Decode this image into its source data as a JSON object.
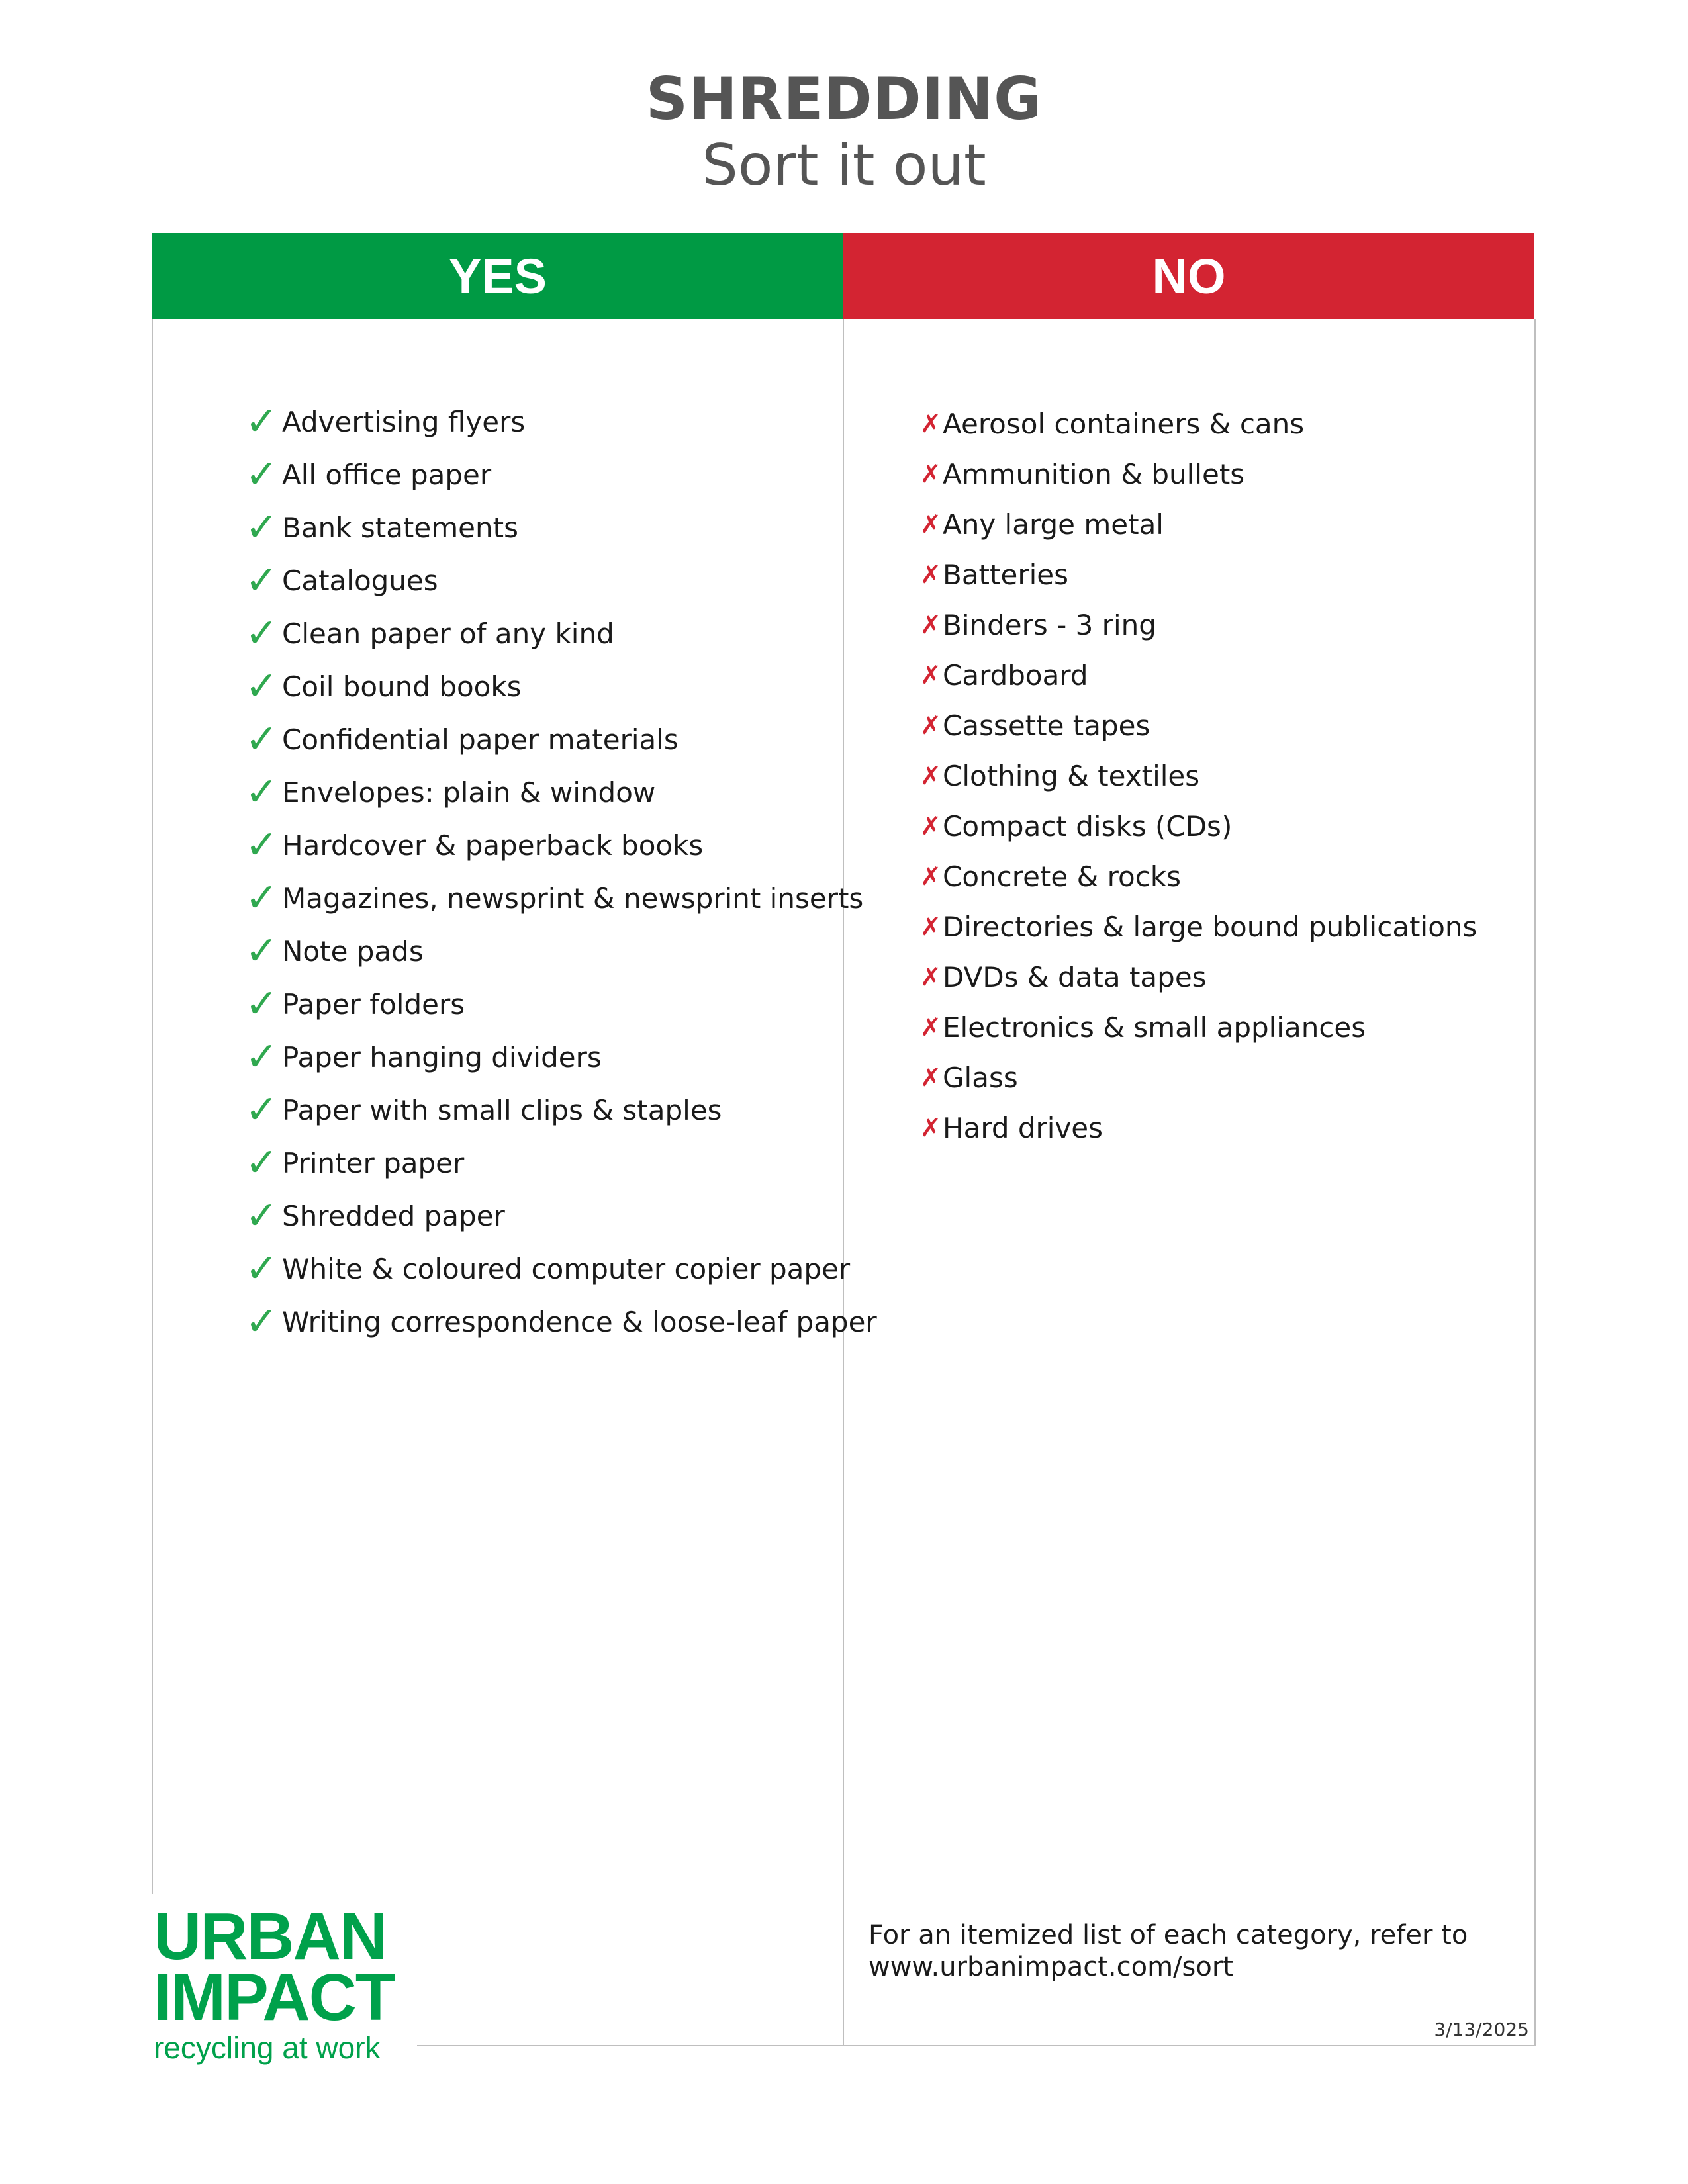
{
  "header": {
    "title": "SHREDDING",
    "subtitle": "Sort it out"
  },
  "columns": {
    "yes_label": "YES",
    "no_label": "NO"
  },
  "marks": {
    "yes_icon": "check-icon",
    "yes_glyph": "✓",
    "no_icon": "cross-icon",
    "no_glyph": "✗",
    "yes_color": "#009a44",
    "no_color": "#d32432"
  },
  "yes_items": [
    "Advertising flyers",
    "All office paper",
    "Bank statements",
    "Catalogues",
    "Clean paper of any kind",
    "Coil bound books",
    "Confidential paper materials",
    "Envelopes: plain & window",
    "Hardcover & paperback books",
    "Magazines, newsprint & newsprint inserts",
    "Note pads",
    "Paper folders",
    "Paper hanging dividers",
    "Paper with small clips & staples",
    "Printer paper",
    "Shredded paper",
    "White & coloured computer copier paper",
    "Writing correspondence & loose-leaf paper"
  ],
  "no_items": [
    "Aerosol containers & cans",
    "Ammunition & bullets",
    "Any large metal",
    "Batteries",
    "Binders - 3 ring",
    "Cardboard",
    "Cassette tapes",
    "Clothing & textiles",
    "Compact disks (CDs)",
    "Concrete & rocks",
    "Directories & large bound publications",
    "DVDs & data tapes",
    "Electronics & small appliances",
    "Glass",
    "Hard drives"
  ],
  "footer": {
    "note_line1": "For an itemized list of each category, refer to",
    "note_line2": "www.urbanimpact.com/sort",
    "date": "3/13/2025"
  },
  "logo": {
    "line1": "URBAN",
    "line2": "IMPACT",
    "tagline": "recycling at work",
    "color": "#00a14b"
  }
}
